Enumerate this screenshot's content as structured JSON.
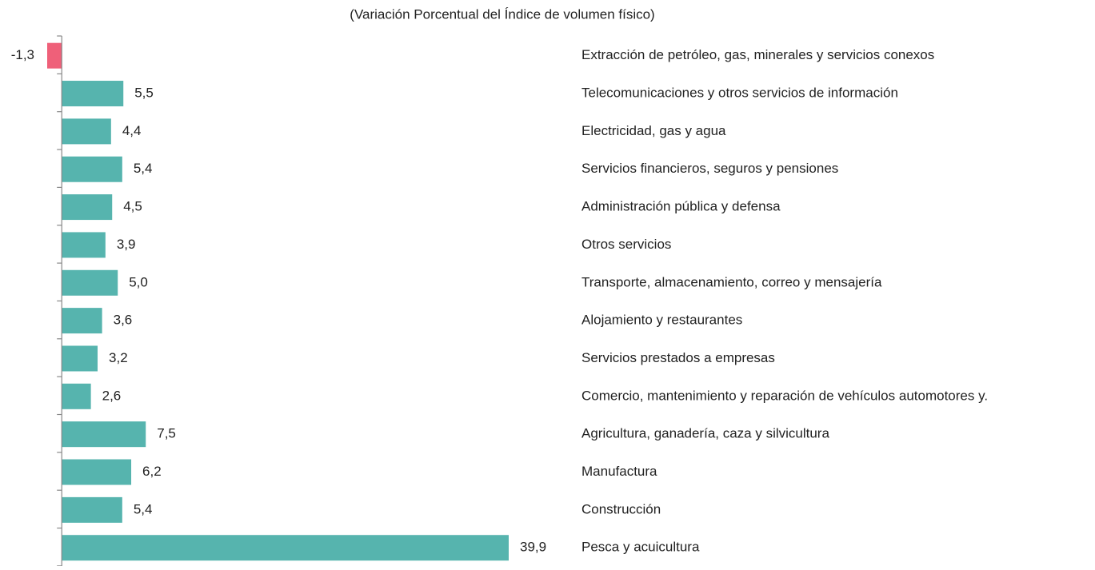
{
  "chart_data": {
    "type": "barh",
    "title": "(Variación Porcentual del Índice de volumen físico)",
    "categories": [
      "Extracción de petróleo, gas, minerales y servicios conexos",
      "Telecomunicaciones y otros servicios de información",
      "Electricidad, gas y agua",
      "Servicios financieros, seguros y pensiones",
      "Administración pública y defensa",
      "Otros servicios",
      "Transporte, almacenamiento, correo y mensajería",
      "Alojamiento y restaurantes",
      "Servicios prestados a empresas",
      "Comercio, mantenimiento y reparación de vehículos automotores y.",
      "Agricultura, ganadería, caza y silvicultura",
      "Manufactura",
      "Construcción",
      "Pesca y acuicultura"
    ],
    "values": [
      -1.3,
      5.5,
      4.4,
      5.4,
      4.5,
      3.9,
      5.0,
      3.6,
      3.2,
      2.6,
      7.5,
      6.2,
      5.4,
      39.9
    ],
    "value_labels": [
      "-1,3",
      "5,5",
      "4,4",
      "5,4",
      "4,5",
      "3,9",
      "5,0",
      "3,6",
      "3,2",
      "2,6",
      "7,5",
      "6,2",
      "5,4",
      "39,9"
    ],
    "color": "#56b4ae",
    "negative_color": "#ef6079"
  }
}
